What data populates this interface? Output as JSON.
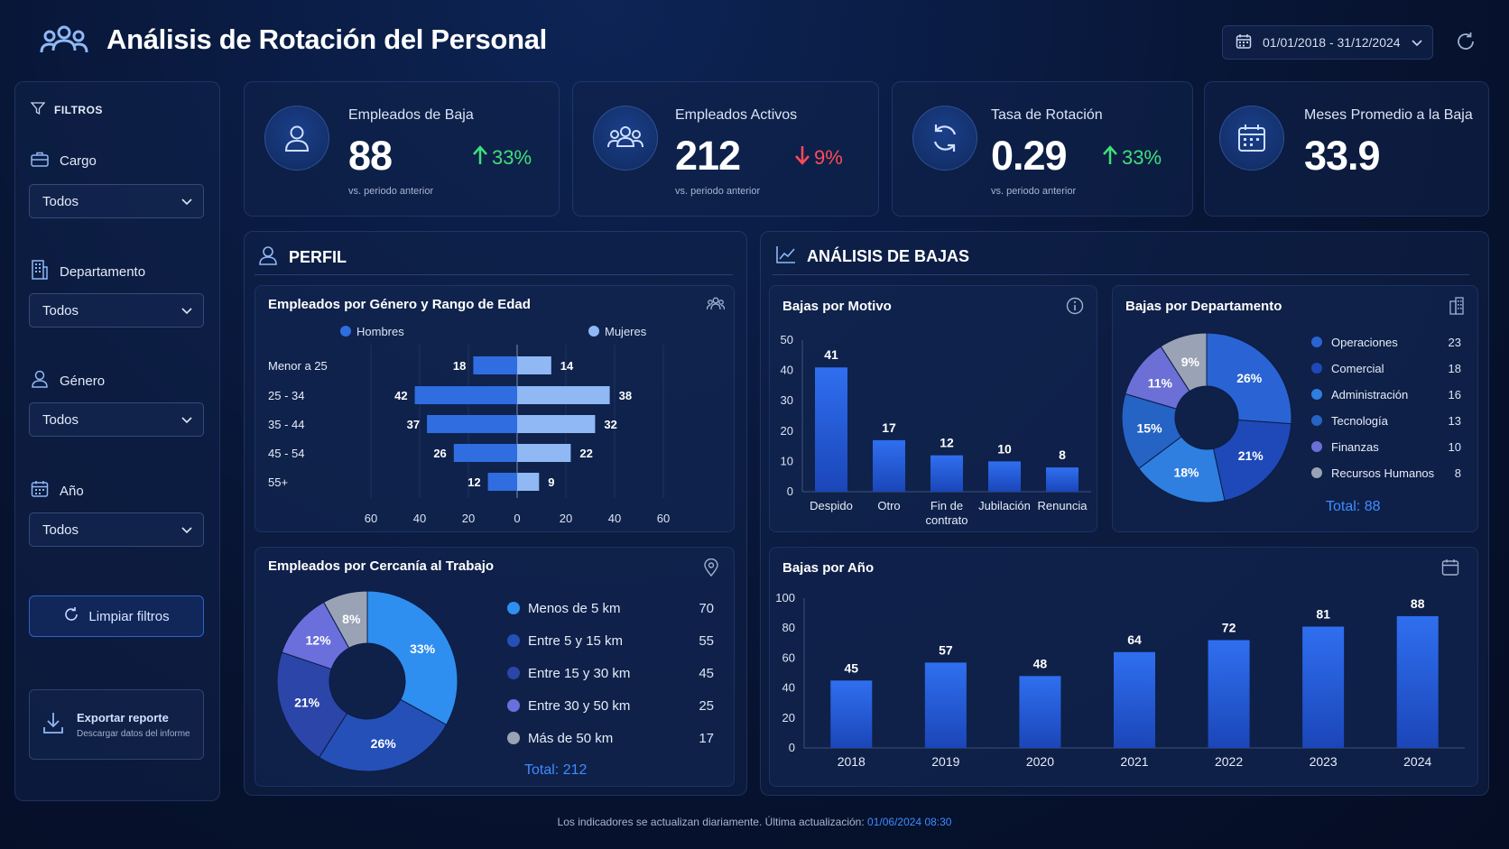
{
  "header": {
    "title": "Análisis de Rotación del Personal",
    "date_range": "01/01/2018 - 31/12/2024"
  },
  "filters": {
    "heading": "FILTROS",
    "cargo": {
      "label": "Cargo",
      "value": "Todos"
    },
    "departamento": {
      "label": "Departamento",
      "value": "Todos"
    },
    "genero": {
      "label": "Género",
      "value": "Todos"
    },
    "anio": {
      "label": "Año",
      "value": "Todos"
    },
    "clear_label": "Limpiar filtros",
    "export_title": "Exportar reporte",
    "export_sub": "Descargar datos del informe"
  },
  "kpis": [
    {
      "label": "Empleados de Baja",
      "value": "88",
      "change": "33%",
      "direction": "up",
      "sub": "vs. periodo anterior"
    },
    {
      "label": "Empleados Activos",
      "value": "212",
      "change": "9%",
      "direction": "down",
      "sub": "vs. periodo anterior"
    },
    {
      "label": "Tasa de Rotación",
      "value": "0.29",
      "change": "33%",
      "direction": "up",
      "sub": "vs. periodo anterior"
    },
    {
      "label": "Meses Promedio a la Baja",
      "value": "33.9"
    }
  ],
  "perfil": {
    "heading": "PERFIL",
    "gender_chart_title": "Empleados por Género y Rango de Edad",
    "distance_chart_title": "Empleados por Cercanía al Trabajo",
    "distance_total": "Total: 212"
  },
  "bajas": {
    "heading": "ANÁLISIS DE BAJAS",
    "motivo_title": "Bajas por Motivo",
    "departamento_title": "Bajas por Departamento",
    "departamento_total": "Total: 88",
    "anio_title": "Bajas por Año"
  },
  "footer": {
    "text": "Los indicadores se actualizan diariamente. Última actualización:",
    "timestamp": "01/06/2024 08:30"
  },
  "colors": {
    "accent": "#3f8cff",
    "up": "#3ee07a",
    "down": "#ff4a5a",
    "bar_dark": "#2563eb",
    "bar_light": "#8fb8f5"
  },
  "chart_data": [
    {
      "id": "gender_age",
      "type": "bar",
      "orientation": "horizontal-butterfly",
      "categories": [
        "Menor a 25",
        "25 - 34",
        "35 - 44",
        "45 - 54",
        "55+"
      ],
      "series": [
        {
          "name": "Hombres",
          "values": [
            18,
            42,
            37,
            26,
            12
          ],
          "color": "#2f6de0"
        },
        {
          "name": "Mujeres",
          "values": [
            14,
            38,
            32,
            22,
            9
          ],
          "color": "#8fb8f5"
        }
      ],
      "x_ticks": [
        "60",
        "40",
        "20",
        "0",
        "20",
        "40",
        "60"
      ],
      "xlim": [
        -60,
        60
      ]
    },
    {
      "id": "distance",
      "type": "pie",
      "donut": true,
      "labels": [
        "Menos de 5 km",
        "Entre 5 y 15 km",
        "Entre 15 y 30 km",
        "Entre 30 y 50 km",
        "Más de 50 km"
      ],
      "values": [
        70,
        55,
        45,
        25,
        17
      ],
      "percent_labels": [
        "33%",
        "26%",
        "21%",
        "12%",
        "8%"
      ],
      "colors": [
        "#2f8ff0",
        "#2450b8",
        "#2b45a8",
        "#6a6fdc",
        "#9aa3b5"
      ]
    },
    {
      "id": "motivo",
      "type": "bar",
      "categories": [
        "Despido",
        "Otro",
        "Fin de contrato",
        "Jubilación",
        "Renuncia"
      ],
      "values": [
        41,
        17,
        12,
        10,
        8
      ],
      "ylim": [
        0,
        50
      ],
      "y_ticks": [
        "0",
        "10",
        "20",
        "30",
        "40",
        "50"
      ]
    },
    {
      "id": "departamento",
      "type": "pie",
      "donut": true,
      "labels": [
        "Operaciones",
        "Comercial",
        "Administración",
        "Tecnología",
        "Finanzas",
        "Recursos Humanos"
      ],
      "values": [
        23,
        18,
        16,
        13,
        10,
        8
      ],
      "percent_labels": [
        "26%",
        "21%",
        "18%",
        "15%",
        "11%",
        "9%"
      ],
      "colors": [
        "#2a64d4",
        "#1f49b8",
        "#2f7fe0",
        "#2563c4",
        "#6b6fd6",
        "#9aa3b5"
      ]
    },
    {
      "id": "anio",
      "type": "bar",
      "categories": [
        "2018",
        "2019",
        "2020",
        "2021",
        "2022",
        "2023",
        "2024"
      ],
      "values": [
        45,
        57,
        48,
        64,
        72,
        81,
        88
      ],
      "ylim": [
        0,
        100
      ],
      "y_ticks": [
        "0",
        "20",
        "40",
        "60",
        "80",
        "100"
      ]
    }
  ]
}
